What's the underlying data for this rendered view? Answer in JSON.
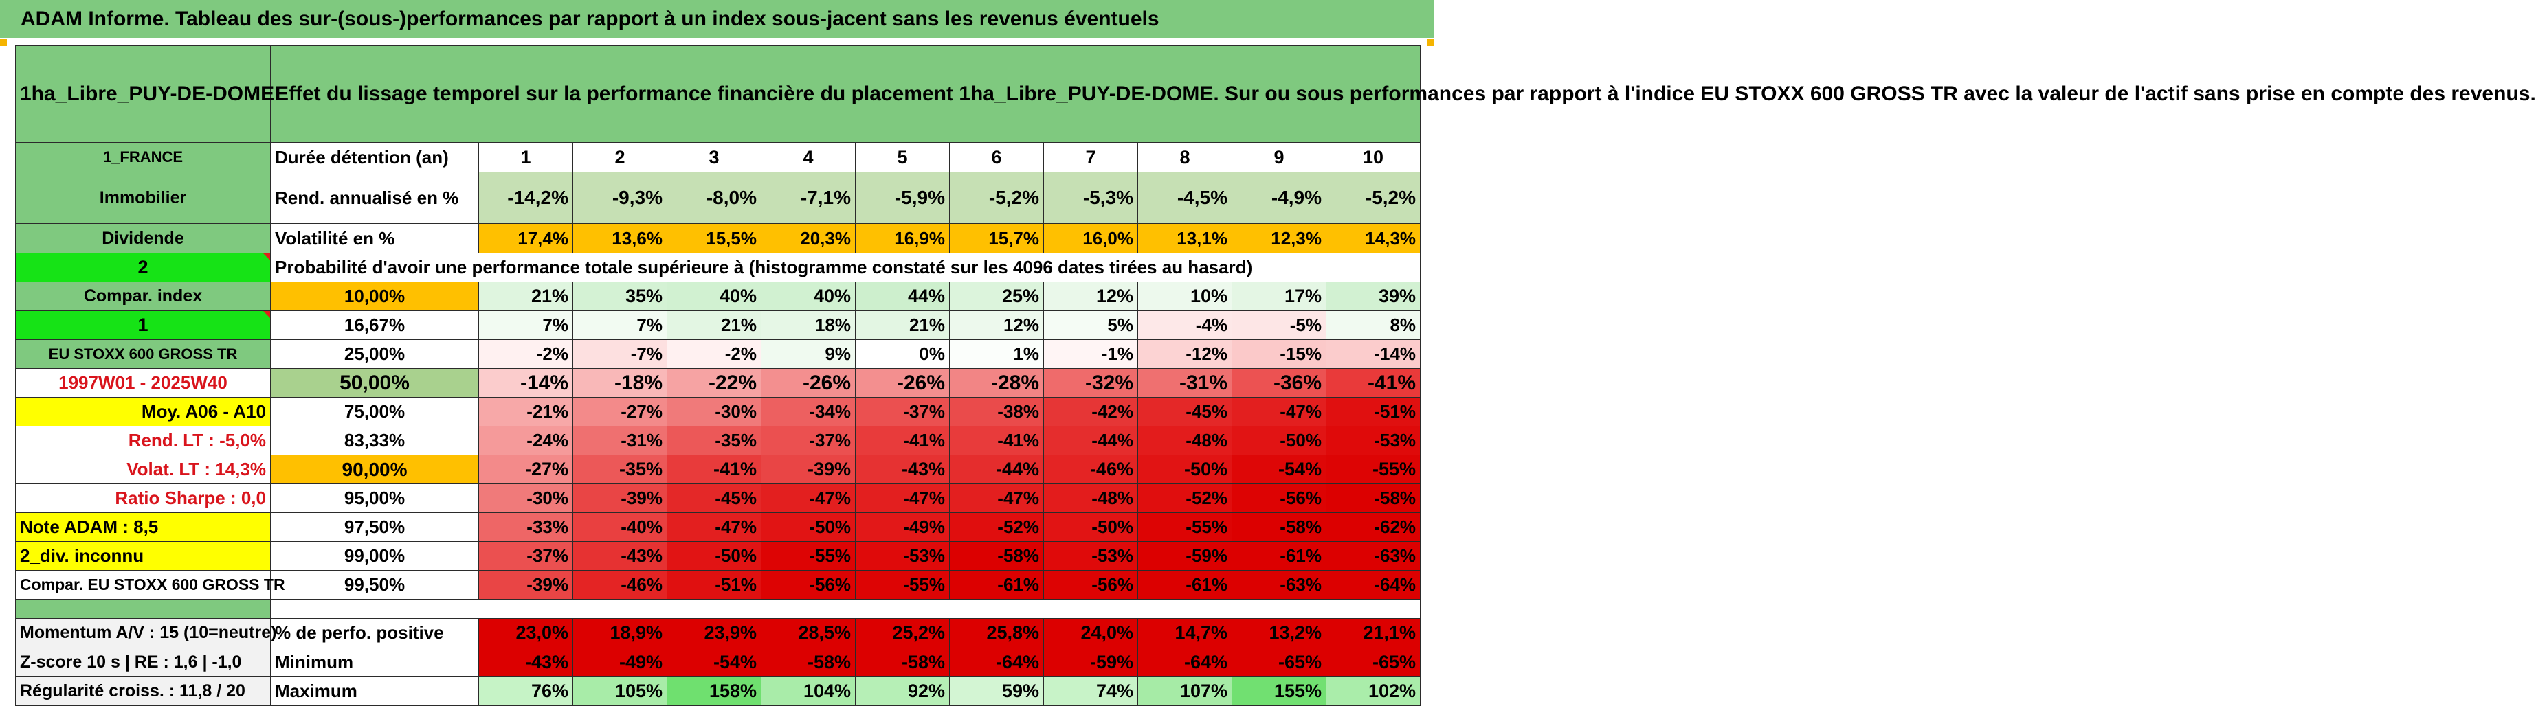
{
  "banner_title": "ADAM Informe. Tableau des sur-(sous-)performances par rapport à un index sous-jacent sans les revenus éventuels",
  "asset_name": "1ha_Libre_PUY-DE-DOME",
  "description": "Effet du lissage temporel sur la performance financière du placement 1ha_Libre_PUY-DE-DOME. Sur ou sous performances par rapport à l'indice EU STOXX 600 GROSS TR avec la valeur de l'actif sans prise en compte des revenus.",
  "left_labels": {
    "country": "1_FRANCE",
    "category": "Immobilier",
    "income_type": "Dividende",
    "selector_1": "2",
    "compar_index": "Compar. index",
    "selector_2": "1",
    "index_name": "EU STOXX 600 GROSS TR",
    "period": "1997W01 - 2025W40",
    "moy": "Moy. A06 - A10",
    "rend_lt": "Rend. LT :    -5,0%",
    "volat_lt": "Volat. LT :    14,3%",
    "sharpe": "Ratio Sharpe :    0,0",
    "note": "Note ADAM : 8,5",
    "div": "2_div. inconnu",
    "compar": "Compar. EU STOXX 600 GROSS TR"
  },
  "row_labels": {
    "duration": "Durée détention (an)",
    "rendement": "Rend. annualisé en %",
    "volatility": "Volatilité en %",
    "probability": "Probabilité d'avoir une performance totale supérieure à (histogramme constaté sur les 4096 dates tirées au hasard)"
  },
  "years": [
    "1",
    "2",
    "3",
    "4",
    "5",
    "6",
    "7",
    "8",
    "9",
    "10"
  ],
  "rendement": [
    "-14,2%",
    "-9,3%",
    "-8,0%",
    "-7,1%",
    "-5,9%",
    "-5,2%",
    "-5,3%",
    "-4,5%",
    "-4,9%",
    "-5,2%"
  ],
  "volatility": [
    "17,4%",
    "13,6%",
    "15,5%",
    "20,3%",
    "16,9%",
    "15,7%",
    "16,0%",
    "13,1%",
    "12,3%",
    "14,3%"
  ],
  "volatility_colors": [
    "#ffc000",
    "#ffc000",
    "#ffc000",
    "#ffc000",
    "#ffc000",
    "#ffc000",
    "#ffc000",
    "#ffc000",
    "#ffc000",
    "#ffc000"
  ],
  "percentiles": [
    {
      "label": "10,00%",
      "bg": "#ffc000",
      "bold": false,
      "values": [
        "21%",
        "35%",
        "40%",
        "40%",
        "44%",
        "25%",
        "12%",
        "10%",
        "17%",
        "39%"
      ],
      "colors": [
        "#dff5df",
        "#d4f2d4",
        "#d1f1d1",
        "#d1f1d1",
        "#cdefcd",
        "#dcf4dc",
        "#eaf8ea",
        "#edf9ed",
        "#e4f6e4",
        "#d2f1d2"
      ]
    },
    {
      "label": "16,67%",
      "bg": "#ffffff",
      "bold": false,
      "values": [
        "7%",
        "7%",
        "21%",
        "18%",
        "21%",
        "12%",
        "5%",
        "-4%",
        "-5%",
        "8%"
      ],
      "colors": [
        "#f2fbf2",
        "#f2fbf2",
        "#e3f6e3",
        "#e6f7e6",
        "#e3f6e3",
        "#edf9ed",
        "#f5fcf5",
        "#fde8e8",
        "#fde6e6",
        "#f1faf1"
      ]
    },
    {
      "label": "25,00%",
      "bg": "#ffffff",
      "bold": false,
      "values": [
        "-2%",
        "-7%",
        "-2%",
        "9%",
        "0%",
        "1%",
        "-1%",
        "-12%",
        "-15%",
        "-14%"
      ],
      "colors": [
        "#fff1f1",
        "#fde0e0",
        "#fff1f1",
        "#f0faf0",
        "#ffffff",
        "#fbfefb",
        "#fff5f5",
        "#fcd3d3",
        "#fbc9c9",
        "#fbcccc"
      ]
    },
    {
      "label": "50,00%",
      "bg": "#a9d18e",
      "bold": true,
      "values": [
        "-14%",
        "-18%",
        "-22%",
        "-26%",
        "-26%",
        "-28%",
        "-32%",
        "-31%",
        "-36%",
        "-41%"
      ],
      "colors": [
        "#fbcccc",
        "#f9b8b8",
        "#f6a3a3",
        "#f38f8f",
        "#f38f8f",
        "#f28585",
        "#ef6b6b",
        "#ef7070",
        "#ec5252",
        "#e93a3a"
      ]
    },
    {
      "label": "75,00%",
      "bg": "#ffffff",
      "bold": false,
      "values": [
        "-21%",
        "-27%",
        "-30%",
        "-34%",
        "-37%",
        "-38%",
        "-42%",
        "-45%",
        "-47%",
        "-51%"
      ],
      "colors": [
        "#f7a8a8",
        "#f38a8a",
        "#f07a7a",
        "#ed6060",
        "#eb5050",
        "#ea4b4b",
        "#e63636",
        "#e42828",
        "#e31f1f",
        "#e01010"
      ]
    },
    {
      "label": "83,33%",
      "bg": "#ffffff",
      "bold": false,
      "values": [
        "-24%",
        "-31%",
        "-35%",
        "-37%",
        "-41%",
        "-41%",
        "-44%",
        "-48%",
        "-50%",
        "-53%"
      ],
      "colors": [
        "#f59a9a",
        "#ef7070",
        "#ec5858",
        "#eb5050",
        "#e83b3b",
        "#e83b3b",
        "#e52d2d",
        "#e31c1c",
        "#e11414",
        "#df0a0a"
      ]
    },
    {
      "label": "90,00%",
      "bg": "#ffc000",
      "bold": true,
      "values": [
        "-27%",
        "-35%",
        "-41%",
        "-39%",
        "-43%",
        "-44%",
        "-46%",
        "-50%",
        "-54%",
        "-55%"
      ],
      "colors": [
        "#f38a8a",
        "#ec5858",
        "#e83b3b",
        "#e94545",
        "#e63232",
        "#e52d2d",
        "#e42424",
        "#e11414",
        "#de0707",
        "#dd0404"
      ]
    },
    {
      "label": "95,00%",
      "bg": "#ffffff",
      "bold": false,
      "values": [
        "-30%",
        "-39%",
        "-45%",
        "-47%",
        "-47%",
        "-47%",
        "-48%",
        "-52%",
        "-56%",
        "-58%"
      ],
      "colors": [
        "#f07a7a",
        "#e94545",
        "#e42828",
        "#e31f1f",
        "#e31f1f",
        "#e31f1f",
        "#e31c1c",
        "#e00e0e",
        "#dd0303",
        "#dc0000"
      ]
    },
    {
      "label": "97,50%",
      "bg": "#ffffff",
      "bold": false,
      "values": [
        "-33%",
        "-40%",
        "-47%",
        "-50%",
        "-49%",
        "-52%",
        "-50%",
        "-55%",
        "-58%",
        "-62%"
      ],
      "colors": [
        "#ee6666",
        "#e94040",
        "#e31f1f",
        "#e11414",
        "#e21818",
        "#e00e0e",
        "#e11414",
        "#dd0404",
        "#dc0000",
        "#dc0000"
      ]
    },
    {
      "label": "99,00%",
      "bg": "#ffffff",
      "bold": false,
      "values": [
        "-37%",
        "-43%",
        "-50%",
        "-55%",
        "-53%",
        "-58%",
        "-53%",
        "-59%",
        "-61%",
        "-63%"
      ],
      "colors": [
        "#eb5050",
        "#e63232",
        "#e11414",
        "#dd0404",
        "#df0a0a",
        "#dc0000",
        "#df0a0a",
        "#dc0000",
        "#dc0000",
        "#dc0000"
      ]
    },
    {
      "label": "99,50%",
      "bg": "#ffffff",
      "bold": false,
      "values": [
        "-39%",
        "-46%",
        "-51%",
        "-56%",
        "-55%",
        "-61%",
        "-56%",
        "-61%",
        "-63%",
        "-64%"
      ],
      "colors": [
        "#e94545",
        "#e42424",
        "#e01010",
        "#dd0303",
        "#dd0404",
        "#dc0000",
        "#dd0303",
        "#dc0000",
        "#dc0000",
        "#dc0000"
      ]
    }
  ],
  "footer": {
    "momentum": "Momentum A/V : 15 (10=neutre)",
    "zscore": "Z-score 10 s | RE : 1,6 | -1,0",
    "regularite": "Régularité croiss. : 11,8 / 20",
    "positive_label": "% de perfo. positive",
    "minimum_label": "Minimum",
    "maximum_label": "Maximum",
    "positive": [
      "23,0%",
      "18,9%",
      "23,9%",
      "28,5%",
      "25,2%",
      "25,8%",
      "24,0%",
      "14,7%",
      "13,2%",
      "21,1%"
    ],
    "minimum": [
      "-43%",
      "-49%",
      "-54%",
      "-58%",
      "-58%",
      "-64%",
      "-59%",
      "-64%",
      "-65%",
      "-65%"
    ],
    "maximum": [
      "76%",
      "105%",
      "158%",
      "104%",
      "92%",
      "59%",
      "74%",
      "107%",
      "155%",
      "102%"
    ],
    "maximum_colors": [
      "#c6f3c6",
      "#a8eca8",
      "#6fe06f",
      "#a9eca9",
      "#b6efb6",
      "#d3f5d3",
      "#c8f3c8",
      "#a6eba6",
      "#71e071",
      "#aaedaa"
    ]
  },
  "colors": {
    "header_green": "#7fc97f",
    "selector_green": "#16e316",
    "highlight_yellow": "#ffff00",
    "accent_orange": "#ffc000",
    "negative_red": "#dc0000",
    "text_red": "#d9141c"
  }
}
